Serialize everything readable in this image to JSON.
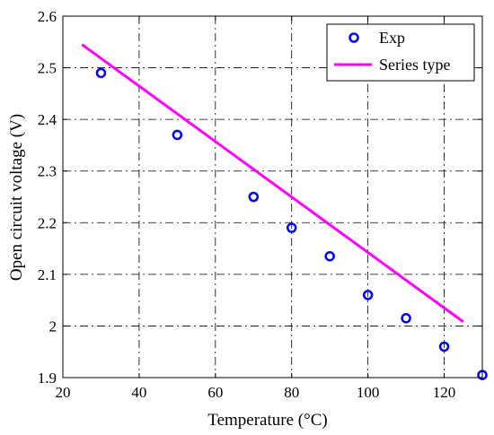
{
  "chart_data": {
    "type": "scatter",
    "xlabel": "Temperature (°C)",
    "ylabel": "Open circuit voltage (V)",
    "xlim": [
      20,
      130
    ],
    "ylim": [
      1.9,
      2.6
    ],
    "xticks": [
      20,
      40,
      60,
      80,
      100,
      120
    ],
    "yticks": [
      1.9,
      2.0,
      2.1,
      2.2,
      2.3,
      2.4,
      2.5,
      2.6
    ],
    "xtick_labels": [
      "20",
      "40",
      "60",
      "80",
      "100",
      "120"
    ],
    "ytick_labels": [
      "1.9",
      "2",
      "2.1",
      "2.2",
      "2.3",
      "2.4",
      "2.5",
      "2.6"
    ],
    "grid": true,
    "legend_position": "top-right",
    "series": [
      {
        "name": "Exp",
        "kind": "scatter",
        "marker": "circle-open",
        "color": "#0000ff",
        "x": [
          30,
          50,
          70,
          80,
          90,
          100,
          110,
          120,
          130
        ],
        "y": [
          2.49,
          2.37,
          2.25,
          2.19,
          2.135,
          2.06,
          2.015,
          1.96,
          1.905
        ]
      },
      {
        "name": "Series type",
        "kind": "line",
        "color": "#ff00ff",
        "x": [
          25,
          125
        ],
        "y": [
          2.545,
          2.008
        ]
      }
    ]
  }
}
